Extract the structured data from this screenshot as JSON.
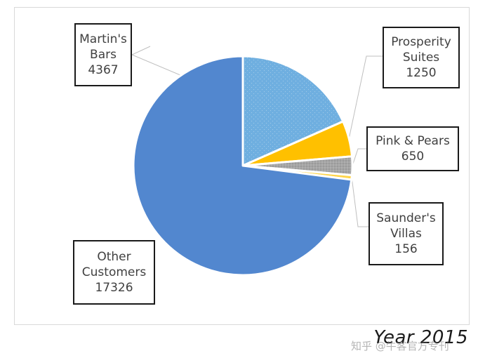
{
  "chart_data": {
    "type": "pie",
    "title": "",
    "caption": "Year 2015",
    "slices": [
      {
        "label_lines": [
          "Martin's",
          "Bars"
        ],
        "value": 4367,
        "value_label": "4367",
        "color": "#6fafe0",
        "pattern": "dotted"
      },
      {
        "label_lines": [
          "Prosperity",
          "Suites"
        ],
        "value": 1250,
        "value_label": "1250",
        "color": "#ffc000",
        "pattern": "none"
      },
      {
        "label_lines": [
          "Pink & Pears"
        ],
        "value": 650,
        "value_label": "650",
        "color": "#a5a5a5",
        "pattern": "dotted"
      },
      {
        "label_lines": [
          "Saunder's",
          "Villas"
        ],
        "value": 156,
        "value_label": "156",
        "color": "#ffd54a",
        "pattern": "none"
      },
      {
        "label_lines": [
          "Other",
          "Customers"
        ],
        "value": 17326,
        "value_label": "17326",
        "color": "#5287cf",
        "pattern": "none"
      }
    ],
    "start_angle_deg": 0,
    "direction": "clockwise",
    "legend": "none",
    "border_color": "#ffffff"
  },
  "watermark": "知乎 @牛客官方专刊"
}
